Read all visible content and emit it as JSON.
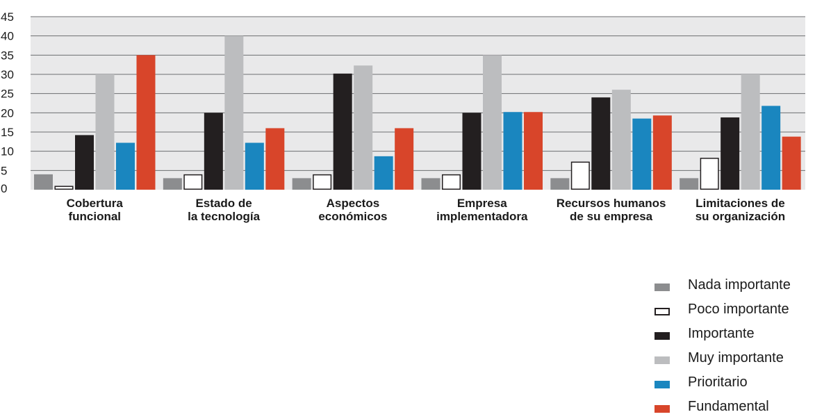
{
  "chart_data": {
    "type": "bar",
    "title": "",
    "xlabel": "",
    "ylabel": "",
    "ylim": [
      0,
      45
    ],
    "yticks": [
      0,
      5,
      10,
      15,
      20,
      25,
      30,
      35,
      40,
      45
    ],
    "grid": true,
    "legend_position": "bottom-right",
    "categories": [
      [
        "Cobertura",
        "funcional"
      ],
      [
        "Estado de",
        "la tecnología"
      ],
      [
        "Aspectos",
        "económicos"
      ],
      [
        "Empresa",
        "implementadora"
      ],
      [
        "Recursos humanos",
        "de su empresa"
      ],
      [
        "Limitaciones de",
        "su organización"
      ]
    ],
    "series": [
      {
        "name": "Nada importante",
        "color": "#8c8d8f",
        "outlined": false,
        "values": [
          4,
          3,
          3,
          3,
          3,
          3
        ]
      },
      {
        "name": "Poco importante",
        "color": "#ffffff",
        "outlined": true,
        "values": [
          1,
          4,
          4,
          4,
          7.3,
          8.3
        ]
      },
      {
        "name": "Importante",
        "color": "#231f20",
        "outlined": false,
        "values": [
          14.2,
          20,
          30.2,
          20,
          24,
          18.8
        ]
      },
      {
        "name": "Muy importante",
        "color": "#bcbdbf",
        "outlined": false,
        "values": [
          30,
          40,
          32.3,
          35,
          26,
          30
        ]
      },
      {
        "name": "Prioritario",
        "color": "#1a86bf",
        "outlined": false,
        "values": [
          12.2,
          12.2,
          8.7,
          20.2,
          18.5,
          21.8
        ]
      },
      {
        "name": "Fundamental",
        "color": "#d8452a",
        "outlined": false,
        "values": [
          35,
          16,
          16,
          20.2,
          19.3,
          13.8
        ]
      }
    ],
    "background_color": "#e9e9ea",
    "grid_color": "#6d6e71"
  }
}
